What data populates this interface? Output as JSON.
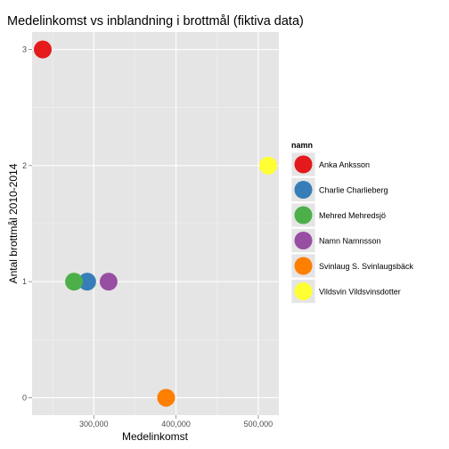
{
  "chart_data": {
    "type": "scatter",
    "title": "Medelinkomst vs inblandning i brottmål (fiktiva data)",
    "xlabel": "Medelinkomst",
    "ylabel": "Antal brottmål 2010-2014",
    "xlim": [
      225000,
      525000
    ],
    "ylim": [
      -0.15,
      3.15
    ],
    "x_ticks": [
      300000,
      400000,
      500000
    ],
    "x_tick_labels": [
      "300,000",
      "400,000",
      "500,000"
    ],
    "y_ticks": [
      0,
      1,
      2,
      3
    ],
    "y_tick_labels": [
      "0",
      "1",
      "2",
      "3"
    ],
    "grid": true,
    "legend_title": "namn",
    "legend_position": "right",
    "series": [
      {
        "name": "Anka Anksson",
        "color": "#E41A1C",
        "x": 238000,
        "y": 3
      },
      {
        "name": "Charlie Charlieberg",
        "color": "#377EB8",
        "x": 292000,
        "y": 1
      },
      {
        "name": "Mehred Mehredsjö",
        "color": "#4DAF4A",
        "x": 276000,
        "y": 1
      },
      {
        "name": "Namn Namnsson",
        "color": "#984EA3",
        "x": 318000,
        "y": 1
      },
      {
        "name": "Svinlaug S. Svinlaugsbäck",
        "color": "#FF7F00",
        "x": 388000,
        "y": 0
      },
      {
        "name": "Vildsvin Vildsvinsdotter",
        "color": "#FFFF33",
        "x": 512000,
        "y": 2
      }
    ]
  }
}
